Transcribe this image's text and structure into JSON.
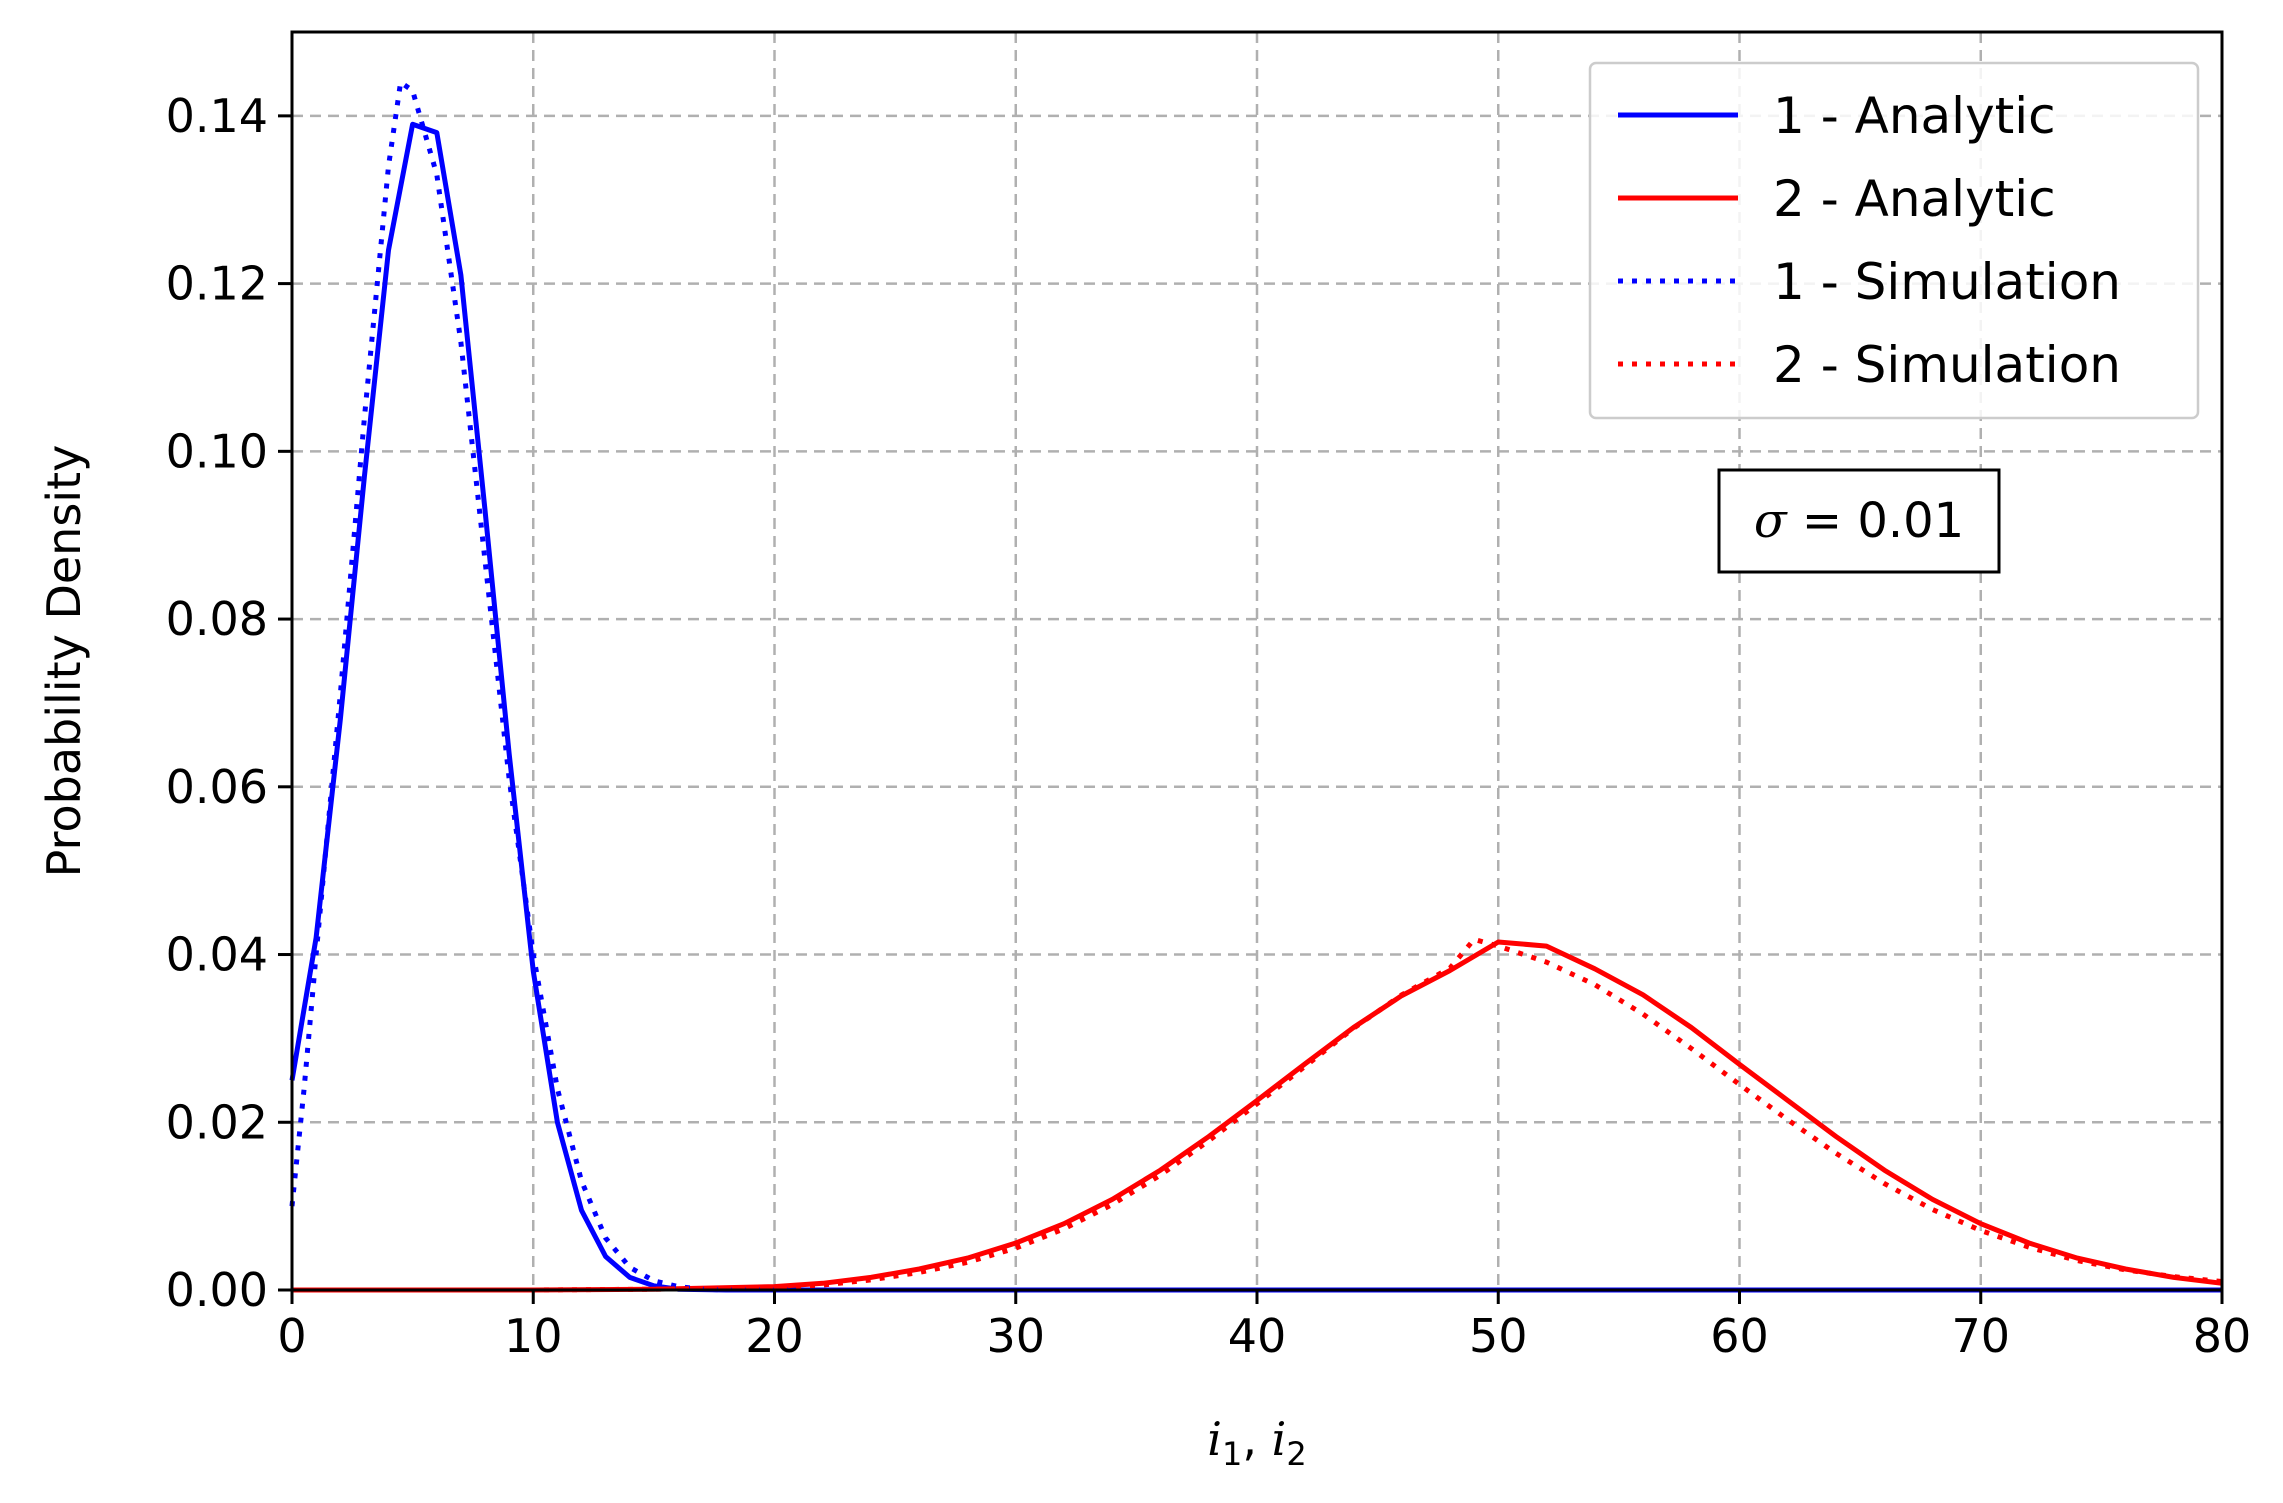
{
  "chart_data": {
    "type": "line",
    "xlabel_parts": {
      "sym1": "i",
      "sub1": "1",
      "sep": ", ",
      "sym2": "i",
      "sub2": "2"
    },
    "ylabel": "Probability Density",
    "xlim": [
      0,
      80
    ],
    "ylim": [
      0,
      0.15
    ],
    "xticks": [
      0,
      10,
      20,
      30,
      40,
      50,
      60,
      70,
      80
    ],
    "xtick_labels": [
      "0",
      "10",
      "20",
      "30",
      "40",
      "50",
      "60",
      "70",
      "80"
    ],
    "yticks": [
      0,
      0.02,
      0.04,
      0.06,
      0.08,
      0.1,
      0.12,
      0.14
    ],
    "ytick_labels": [
      "0.00",
      "0.02",
      "0.04",
      "0.06",
      "0.08",
      "0.10",
      "0.12",
      "0.14"
    ],
    "grid": true,
    "legend_position": "top-right",
    "annotation": {
      "symbol": "σ",
      "text": " = 0.01",
      "position": "right, below legend"
    },
    "series": [
      {
        "name": "1 - Analytic",
        "color": "#0000ff",
        "style": "solid",
        "x": [
          0,
          1,
          2,
          3,
          4,
          5,
          6,
          7,
          8,
          9,
          10,
          11,
          12,
          13,
          14,
          15,
          16,
          18,
          20,
          30,
          40,
          50,
          60,
          70,
          80
        ],
        "y": [
          0.025,
          0.042,
          0.068,
          0.097,
          0.124,
          0.139,
          0.138,
          0.121,
          0.093,
          0.064,
          0.038,
          0.02,
          0.0095,
          0.004,
          0.0015,
          0.0005,
          0.0001,
          0,
          0,
          0,
          0,
          0,
          0,
          0,
          0
        ]
      },
      {
        "name": "2 - Analytic",
        "color": "#ff0000",
        "style": "solid",
        "x": [
          0,
          10,
          15,
          20,
          22,
          24,
          26,
          28,
          30,
          32,
          34,
          36,
          38,
          40,
          42,
          44,
          46,
          48,
          50,
          52,
          54,
          56,
          58,
          60,
          62,
          64,
          66,
          68,
          70,
          72,
          74,
          76,
          78,
          80
        ],
        "y": [
          0,
          0,
          0.0001,
          0.0004,
          0.0008,
          0.0015,
          0.0025,
          0.0038,
          0.0056,
          0.0079,
          0.0108,
          0.0143,
          0.0183,
          0.0226,
          0.027,
          0.0313,
          0.0351,
          0.0381,
          0.0415,
          0.041,
          0.0383,
          0.0352,
          0.0313,
          0.0269,
          0.0226,
          0.0183,
          0.0143,
          0.0108,
          0.0079,
          0.0056,
          0.0038,
          0.0025,
          0.0015,
          0.0008
        ]
      },
      {
        "name": "1 - Simulation",
        "color": "#0000ff",
        "style": "dotted",
        "x": [
          0,
          0.5,
          1,
          2,
          3,
          4,
          4.5,
          5,
          6,
          7,
          8,
          9,
          10,
          11,
          12,
          13,
          14,
          15,
          16,
          17,
          18,
          20,
          30,
          40,
          50,
          60,
          70,
          80
        ],
        "y": [
          0.01,
          0.024,
          0.04,
          0.071,
          0.104,
          0.134,
          0.144,
          0.143,
          0.133,
          0.113,
          0.087,
          0.061,
          0.04,
          0.024,
          0.013,
          0.0062,
          0.0027,
          0.0011,
          0.0004,
          0.0001,
          0,
          0,
          0,
          0,
          0,
          0,
          0,
          0
        ]
      },
      {
        "name": "2 - Simulation",
        "color": "#ff0000",
        "style": "dotted",
        "x": [
          0,
          10,
          15,
          20,
          22,
          24,
          26,
          28,
          30,
          32,
          34,
          36,
          38,
          40,
          42,
          44,
          46,
          48,
          49,
          50,
          52,
          54,
          56,
          58,
          60,
          62,
          64,
          66,
          68,
          70,
          72,
          74,
          76,
          78,
          80
        ],
        "y": [
          0,
          0,
          0.0001,
          0.0003,
          0.0006,
          0.0012,
          0.0021,
          0.0033,
          0.005,
          0.0073,
          0.0102,
          0.0137,
          0.0178,
          0.0222,
          0.0267,
          0.0312,
          0.0352,
          0.0384,
          0.0418,
          0.041,
          0.0391,
          0.0364,
          0.0329,
          0.0288,
          0.0245,
          0.0203,
          0.0163,
          0.0127,
          0.0096,
          0.0071,
          0.0051,
          0.0035,
          0.0024,
          0.0016,
          0.001
        ]
      }
    ]
  }
}
